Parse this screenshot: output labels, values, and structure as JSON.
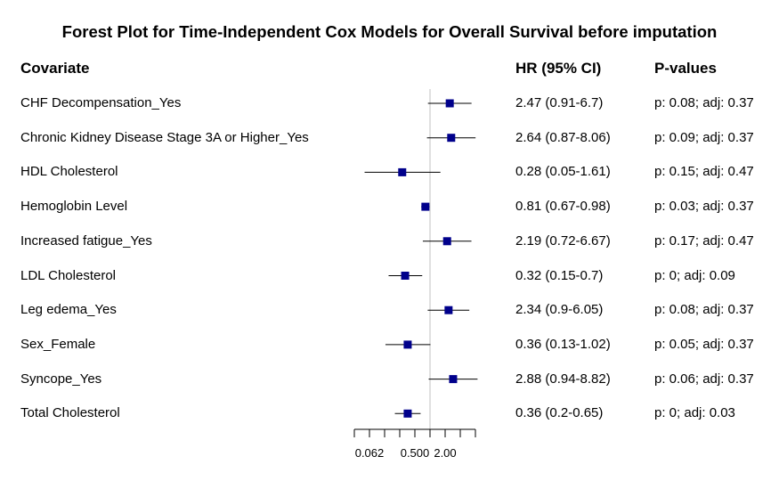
{
  "chart_data": {
    "type": "forest",
    "title": "Forest Plot for Time-Independent Cox Models for Overall Survival before imputation",
    "columns": {
      "covariate": "Covariate",
      "hr": "HR (95% CI)",
      "p": "P-values"
    },
    "rows": [
      {
        "covariate": "CHF Decompensation_Yes",
        "hr": 2.47,
        "lower": 0.91,
        "upper": 6.7,
        "hr_text": "2.47 (0.91-6.7)",
        "p_text": "p: 0.08; adj: 0.37"
      },
      {
        "covariate": "Chronic Kidney Disease Stage 3A or Higher_Yes",
        "hr": 2.64,
        "lower": 0.87,
        "upper": 8.06,
        "hr_text": "2.64 (0.87-8.06)",
        "p_text": "p: 0.09; adj: 0.37"
      },
      {
        "covariate": "HDL Cholesterol",
        "hr": 0.28,
        "lower": 0.05,
        "upper": 1.61,
        "hr_text": "0.28 (0.05-1.61)",
        "p_text": "p: 0.15; adj: 0.47"
      },
      {
        "covariate": "Hemoglobin Level",
        "hr": 0.81,
        "lower": 0.67,
        "upper": 0.98,
        "hr_text": "0.81 (0.67-0.98)",
        "p_text": "p: 0.03; adj: 0.37"
      },
      {
        "covariate": "Increased fatigue_Yes",
        "hr": 2.19,
        "lower": 0.72,
        "upper": 6.67,
        "hr_text": "2.19 (0.72-6.67)",
        "p_text": "p: 0.17; adj: 0.47"
      },
      {
        "covariate": "LDL Cholesterol",
        "hr": 0.32,
        "lower": 0.15,
        "upper": 0.7,
        "hr_text": "0.32 (0.15-0.7)",
        "p_text": "p: 0; adj: 0.09"
      },
      {
        "covariate": "Leg edema_Yes",
        "hr": 2.34,
        "lower": 0.9,
        "upper": 6.05,
        "hr_text": "2.34 (0.9-6.05)",
        "p_text": "p: 0.08; adj: 0.37"
      },
      {
        "covariate": "Sex_Female",
        "hr": 0.36,
        "lower": 0.13,
        "upper": 1.02,
        "hr_text": "0.36 (0.13-1.02)",
        "p_text": "p: 0.05; adj: 0.37"
      },
      {
        "covariate": "Syncope_Yes",
        "hr": 2.88,
        "lower": 0.94,
        "upper": 8.82,
        "hr_text": "2.88 (0.94-8.82)",
        "p_text": "p: 0.06; adj: 0.37"
      },
      {
        "covariate": "Total Cholesterol",
        "hr": 0.36,
        "lower": 0.2,
        "upper": 0.65,
        "hr_text": "0.36 (0.2-0.65)",
        "p_text": "p: 0; adj: 0.03"
      }
    ],
    "x_scale": "log2",
    "reference_line": 1,
    "x_ticks": [
      0.03125,
      0.0625,
      0.125,
      0.25,
      0.5,
      1,
      2,
      4,
      8
    ],
    "x_tick_labels": [
      "0.062",
      "0.500",
      "2.00"
    ],
    "x_tick_label_values": [
      0.0625,
      0.5,
      2
    ],
    "colors": {
      "point": "#00008B",
      "ci_line": "#000000",
      "ref_line": "#C0C0C0"
    }
  }
}
